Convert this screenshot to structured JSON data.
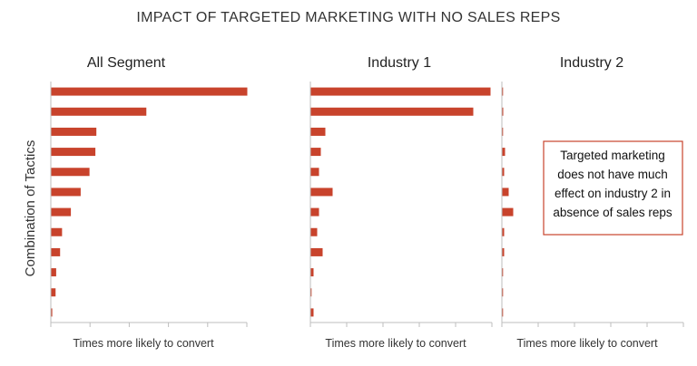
{
  "chart_data": {
    "type": "bar",
    "orientation": "horizontal",
    "title": "IMPACT OF TARGETED MARKETING WITH NO SALES REPS",
    "ylabel": "Combination of Tactics",
    "bar_color": "#c8432c",
    "categories_count": 12,
    "panels": [
      {
        "name": "All Segment",
        "xlabel": "Times more likely to convert",
        "xlim": [
          0,
          10
        ],
        "values": [
          10.0,
          4.85,
          2.3,
          2.25,
          1.95,
          1.5,
          1.0,
          0.55,
          0.45,
          0.25,
          0.22,
          0.05
        ]
      },
      {
        "name": "Industry 1",
        "xlabel": "Times more likely to convert",
        "xlim": [
          0,
          10
        ],
        "values": [
          9.9,
          8.95,
          0.8,
          0.55,
          0.45,
          1.2,
          0.45,
          0.35,
          0.65,
          0.15,
          0.0,
          0.15
        ]
      },
      {
        "name": "Industry 2",
        "xlabel": "Times more likely to convert",
        "xlim": [
          0,
          10
        ],
        "values": [
          0.0,
          0.05,
          0.0,
          0.15,
          0.1,
          0.35,
          0.6,
          0.1,
          0.1,
          0.0,
          0.0,
          0.0
        ]
      }
    ],
    "annotation": {
      "lines": [
        "Targeted marketing",
        "does not have much",
        "effect on industry 2 in",
        "absence of sales reps"
      ],
      "border_color": "#c8432c"
    }
  }
}
